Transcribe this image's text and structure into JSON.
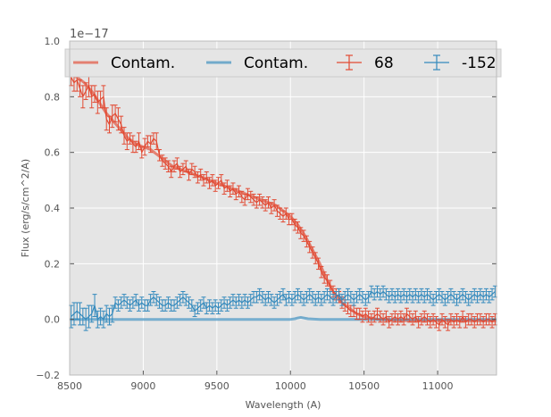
{
  "chart_data": {
    "type": "line",
    "xlabel": "Wavelength (A)",
    "ylabel": "Flux (erg/s/cm^2/A)",
    "y_offset_text": "1e−17",
    "xlim": [
      8500,
      11400
    ],
    "ylim": [
      -0.2,
      1.0
    ],
    "x_ticks": [
      8500,
      9000,
      9500,
      10000,
      10500,
      11000
    ],
    "x_tick_labels": [
      "8500",
      "9000",
      "9500",
      "10000",
      "10500",
      "11000"
    ],
    "y_ticks": [
      -0.2,
      0.0,
      0.2,
      0.4,
      0.6,
      0.8,
      1.0
    ],
    "y_tick_labels": [
      "−0.2",
      "0.0",
      "0.2",
      "0.4",
      "0.6",
      "0.8",
      "1.0"
    ],
    "grid": true,
    "legend_placement": "top",
    "colors": {
      "red": "#e24a33",
      "blue": "#348abd",
      "background": "#e5e5e5",
      "grid": "#ffffff"
    },
    "series": [
      {
        "name": "Contam.",
        "kind": "line",
        "color": "#e24a33",
        "x": [
          8500,
          8550,
          8600,
          8650,
          8700,
          8750,
          8800,
          8850,
          8900,
          8950,
          9000,
          9050,
          9100,
          9150,
          9200,
          9250,
          9300,
          9350,
          9400,
          9450,
          9500,
          9550,
          9600,
          9650,
          9700,
          9750,
          9800,
          9850,
          9900,
          9950,
          10000,
          10050,
          10100,
          10150,
          10200,
          10250,
          10300,
          10350,
          10400,
          10450,
          10500,
          10550,
          10600,
          10700,
          10800,
          10900,
          11000,
          11100,
          11200,
          11300,
          11400
        ],
        "y": [
          0.88,
          0.87,
          0.85,
          0.82,
          0.78,
          0.74,
          0.71,
          0.68,
          0.65,
          0.63,
          0.62,
          0.61,
          0.59,
          0.57,
          0.55,
          0.54,
          0.53,
          0.52,
          0.51,
          0.5,
          0.49,
          0.48,
          0.47,
          0.46,
          0.45,
          0.44,
          0.43,
          0.42,
          0.41,
          0.39,
          0.37,
          0.34,
          0.3,
          0.25,
          0.2,
          0.14,
          0.09,
          0.06,
          0.04,
          0.02,
          0.01,
          0.005,
          0.0,
          -0.003,
          -0.005,
          -0.005,
          -0.005,
          -0.005,
          -0.005,
          -0.005,
          -0.005
        ]
      },
      {
        "name": "Contam.",
        "kind": "line",
        "color": "#348abd",
        "x": [
          8500,
          8700,
          9000,
          9500,
          10000,
          10030,
          10050,
          10070,
          10090,
          10120,
          10200,
          10500,
          11000,
          11400
        ],
        "y": [
          0.0,
          0.0,
          0.0,
          0.0,
          0.0,
          0.002,
          0.005,
          0.007,
          0.005,
          0.002,
          0.0,
          0.0,
          0.0,
          0.0
        ]
      },
      {
        "name": "68",
        "kind": "errorbar",
        "color": "#e24a33",
        "x": [
          8510,
          8530,
          8550,
          8570,
          8590,
          8610,
          8630,
          8650,
          8670,
          8690,
          8710,
          8730,
          8750,
          8770,
          8790,
          8810,
          8830,
          8850,
          8870,
          8890,
          8910,
          8930,
          8950,
          8970,
          8990,
          9010,
          9030,
          9050,
          9070,
          9090,
          9110,
          9130,
          9150,
          9170,
          9190,
          9210,
          9230,
          9250,
          9270,
          9290,
          9310,
          9330,
          9350,
          9370,
          9390,
          9410,
          9430,
          9450,
          9470,
          9490,
          9510,
          9530,
          9550,
          9570,
          9590,
          9610,
          9630,
          9650,
          9670,
          9690,
          9710,
          9730,
          9750,
          9770,
          9790,
          9810,
          9830,
          9850,
          9870,
          9890,
          9910,
          9930,
          9950,
          9970,
          9990,
          10010,
          10030,
          10050,
          10070,
          10090,
          10110,
          10130,
          10150,
          10170,
          10190,
          10210,
          10230,
          10250,
          10270,
          10290,
          10310,
          10330,
          10350,
          10370,
          10390,
          10410,
          10430,
          10450,
          10470,
          10490,
          10510,
          10530,
          10550,
          10570,
          10590,
          10610,
          10630,
          10650,
          10670,
          10690,
          10710,
          10730,
          10750,
          10770,
          10790,
          10810,
          10830,
          10850,
          10870,
          10890,
          10910,
          10930,
          10950,
          10970,
          10990,
          11010,
          11030,
          11050,
          11070,
          11090,
          11110,
          11130,
          11150,
          11170,
          11190,
          11210,
          11230,
          11250,
          11270,
          11290,
          11310,
          11330,
          11350,
          11370,
          11390
        ],
        "y": [
          0.87,
          0.85,
          0.86,
          0.83,
          0.8,
          0.82,
          0.84,
          0.8,
          0.81,
          0.78,
          0.79,
          0.8,
          0.72,
          0.7,
          0.73,
          0.74,
          0.72,
          0.7,
          0.66,
          0.64,
          0.65,
          0.63,
          0.62,
          0.64,
          0.6,
          0.62,
          0.64,
          0.63,
          0.65,
          0.64,
          0.59,
          0.57,
          0.56,
          0.55,
          0.53,
          0.55,
          0.56,
          0.53,
          0.54,
          0.55,
          0.52,
          0.54,
          0.53,
          0.51,
          0.52,
          0.5,
          0.51,
          0.49,
          0.5,
          0.48,
          0.49,
          0.5,
          0.47,
          0.48,
          0.46,
          0.47,
          0.45,
          0.46,
          0.44,
          0.43,
          0.45,
          0.44,
          0.43,
          0.42,
          0.43,
          0.42,
          0.41,
          0.42,
          0.4,
          0.41,
          0.39,
          0.38,
          0.37,
          0.38,
          0.36,
          0.36,
          0.34,
          0.33,
          0.31,
          0.3,
          0.28,
          0.26,
          0.24,
          0.22,
          0.2,
          0.17,
          0.15,
          0.14,
          0.12,
          0.1,
          0.09,
          0.08,
          0.06,
          0.05,
          0.04,
          0.03,
          0.03,
          0.02,
          0.02,
          0.01,
          0.02,
          0.01,
          0.0,
          0.01,
          0.02,
          0.01,
          0.0,
          0.01,
          -0.01,
          0.0,
          0.01,
          0.0,
          0.01,
          0.0,
          0.02,
          0.01,
          0.0,
          0.01,
          -0.01,
          0.0,
          0.01,
          0.0,
          -0.01,
          0.0,
          -0.01,
          -0.02,
          0.0,
          -0.01,
          -0.02,
          0.0,
          -0.01,
          0.0,
          -0.01,
          0.01,
          -0.01,
          0.0,
          0.0,
          -0.01,
          0.0,
          0.0,
          -0.01,
          0.0,
          0.0,
          -0.01,
          0.0
        ],
        "err": [
          0.03,
          0.03,
          0.04,
          0.03,
          0.04,
          0.03,
          0.04,
          0.04,
          0.03,
          0.04,
          0.03,
          0.04,
          0.04,
          0.03,
          0.04,
          0.03,
          0.04,
          0.03,
          0.03,
          0.03,
          0.02,
          0.03,
          0.02,
          0.03,
          0.02,
          0.03,
          0.02,
          0.03,
          0.02,
          0.03,
          0.02,
          0.02,
          0.02,
          0.02,
          0.02,
          0.02,
          0.02,
          0.02,
          0.02,
          0.02,
          0.02,
          0.02,
          0.02,
          0.02,
          0.02,
          0.02,
          0.02,
          0.02,
          0.02,
          0.02,
          0.02,
          0.02,
          0.02,
          0.02,
          0.02,
          0.02,
          0.02,
          0.02,
          0.02,
          0.02,
          0.02,
          0.02,
          0.02,
          0.02,
          0.02,
          0.02,
          0.02,
          0.02,
          0.02,
          0.02,
          0.02,
          0.02,
          0.02,
          0.02,
          0.02,
          0.02,
          0.02,
          0.02,
          0.02,
          0.02,
          0.02,
          0.02,
          0.02,
          0.02,
          0.02,
          0.02,
          0.02,
          0.02,
          0.02,
          0.02,
          0.02,
          0.02,
          0.02,
          0.02,
          0.02,
          0.02,
          0.02,
          0.02,
          0.02,
          0.02,
          0.02,
          0.02,
          0.02,
          0.02,
          0.02,
          0.02,
          0.02,
          0.02,
          0.02,
          0.02,
          0.02,
          0.02,
          0.02,
          0.02,
          0.02,
          0.02,
          0.02,
          0.02,
          0.02,
          0.02,
          0.02,
          0.02,
          0.02,
          0.02,
          0.02,
          0.02,
          0.02,
          0.02,
          0.02,
          0.02,
          0.02,
          0.02,
          0.02,
          0.02,
          0.02,
          0.02,
          0.02,
          0.02,
          0.02,
          0.02,
          0.02,
          0.02,
          0.02,
          0.02,
          0.02
        ]
      },
      {
        "name": "-152",
        "kind": "errorbar",
        "color": "#348abd",
        "x": [
          8510,
          8530,
          8550,
          8570,
          8590,
          8610,
          8630,
          8650,
          8670,
          8690,
          8710,
          8730,
          8750,
          8770,
          8790,
          8810,
          8830,
          8850,
          8870,
          8890,
          8910,
          8930,
          8950,
          8970,
          8990,
          9010,
          9030,
          9050,
          9070,
          9090,
          9110,
          9130,
          9150,
          9170,
          9190,
          9210,
          9230,
          9250,
          9270,
          9290,
          9310,
          9330,
          9350,
          9370,
          9390,
          9410,
          9430,
          9450,
          9470,
          9490,
          9510,
          9530,
          9550,
          9570,
          9590,
          9610,
          9630,
          9650,
          9670,
          9690,
          9710,
          9730,
          9750,
          9770,
          9790,
          9810,
          9830,
          9850,
          9870,
          9890,
          9910,
          9930,
          9950,
          9970,
          9990,
          10010,
          10030,
          10050,
          10070,
          10090,
          10110,
          10130,
          10150,
          10170,
          10190,
          10210,
          10230,
          10250,
          10270,
          10290,
          10310,
          10330,
          10350,
          10370,
          10390,
          10410,
          10430,
          10450,
          10470,
          10490,
          10510,
          10530,
          10550,
          10570,
          10590,
          10610,
          10630,
          10650,
          10670,
          10690,
          10710,
          10730,
          10750,
          10770,
          10790,
          10810,
          10830,
          10850,
          10870,
          10890,
          10910,
          10930,
          10950,
          10970,
          10990,
          11010,
          11030,
          11050,
          11070,
          11090,
          11110,
          11130,
          11150,
          11170,
          11190,
          11210,
          11230,
          11250,
          11270,
          11290,
          11310,
          11330,
          11350,
          11370,
          11390
        ],
        "y": [
          0.01,
          0.02,
          0.03,
          0.02,
          0.01,
          0.0,
          0.01,
          0.02,
          0.05,
          0.0,
          0.01,
          0.0,
          0.02,
          0.01,
          0.02,
          0.06,
          0.05,
          0.06,
          0.07,
          0.06,
          0.05,
          0.06,
          0.07,
          0.05,
          0.06,
          0.05,
          0.05,
          0.07,
          0.08,
          0.07,
          0.06,
          0.05,
          0.05,
          0.06,
          0.05,
          0.05,
          0.06,
          0.07,
          0.08,
          0.07,
          0.06,
          0.05,
          0.03,
          0.04,
          0.05,
          0.06,
          0.04,
          0.05,
          0.04,
          0.05,
          0.04,
          0.05,
          0.06,
          0.05,
          0.06,
          0.07,
          0.06,
          0.07,
          0.06,
          0.07,
          0.06,
          0.07,
          0.08,
          0.08,
          0.09,
          0.08,
          0.07,
          0.08,
          0.07,
          0.06,
          0.07,
          0.08,
          0.09,
          0.07,
          0.08,
          0.07,
          0.08,
          0.09,
          0.08,
          0.07,
          0.08,
          0.09,
          0.08,
          0.07,
          0.08,
          0.07,
          0.08,
          0.09,
          0.08,
          0.07,
          0.08,
          0.09,
          0.07,
          0.08,
          0.09,
          0.08,
          0.07,
          0.08,
          0.09,
          0.08,
          0.07,
          0.08,
          0.1,
          0.09,
          0.1,
          0.09,
          0.1,
          0.09,
          0.08,
          0.09,
          0.08,
          0.09,
          0.08,
          0.09,
          0.08,
          0.09,
          0.08,
          0.09,
          0.08,
          0.09,
          0.08,
          0.09,
          0.08,
          0.07,
          0.08,
          0.09,
          0.08,
          0.07,
          0.08,
          0.09,
          0.08,
          0.07,
          0.08,
          0.09,
          0.08,
          0.07,
          0.08,
          0.09,
          0.08,
          0.09,
          0.08,
          0.09,
          0.08,
          0.09,
          0.1
        ],
        "err": [
          0.04,
          0.04,
          0.03,
          0.04,
          0.03,
          0.04,
          0.04,
          0.03,
          0.04,
          0.03,
          0.03,
          0.03,
          0.03,
          0.03,
          0.03,
          0.02,
          0.02,
          0.02,
          0.02,
          0.02,
          0.02,
          0.02,
          0.02,
          0.02,
          0.02,
          0.02,
          0.02,
          0.02,
          0.02,
          0.02,
          0.02,
          0.02,
          0.02,
          0.02,
          0.02,
          0.02,
          0.02,
          0.02,
          0.02,
          0.02,
          0.02,
          0.02,
          0.02,
          0.02,
          0.02,
          0.02,
          0.02,
          0.02,
          0.02,
          0.02,
          0.02,
          0.02,
          0.02,
          0.02,
          0.02,
          0.02,
          0.02,
          0.02,
          0.02,
          0.02,
          0.02,
          0.02,
          0.02,
          0.02,
          0.02,
          0.02,
          0.02,
          0.02,
          0.02,
          0.02,
          0.02,
          0.02,
          0.02,
          0.02,
          0.02,
          0.02,
          0.02,
          0.02,
          0.02,
          0.02,
          0.02,
          0.02,
          0.02,
          0.02,
          0.02,
          0.02,
          0.02,
          0.02,
          0.02,
          0.02,
          0.02,
          0.02,
          0.02,
          0.02,
          0.02,
          0.02,
          0.02,
          0.02,
          0.02,
          0.02,
          0.02,
          0.02,
          0.02,
          0.02,
          0.02,
          0.02,
          0.02,
          0.02,
          0.02,
          0.02,
          0.02,
          0.02,
          0.02,
          0.02,
          0.02,
          0.02,
          0.02,
          0.02,
          0.02,
          0.02,
          0.02,
          0.02,
          0.02,
          0.02,
          0.02,
          0.02,
          0.02,
          0.02,
          0.02,
          0.02,
          0.02,
          0.02,
          0.02,
          0.02,
          0.02,
          0.02,
          0.02,
          0.02,
          0.02,
          0.02,
          0.02,
          0.02,
          0.02,
          0.02,
          0.02
        ]
      }
    ]
  }
}
